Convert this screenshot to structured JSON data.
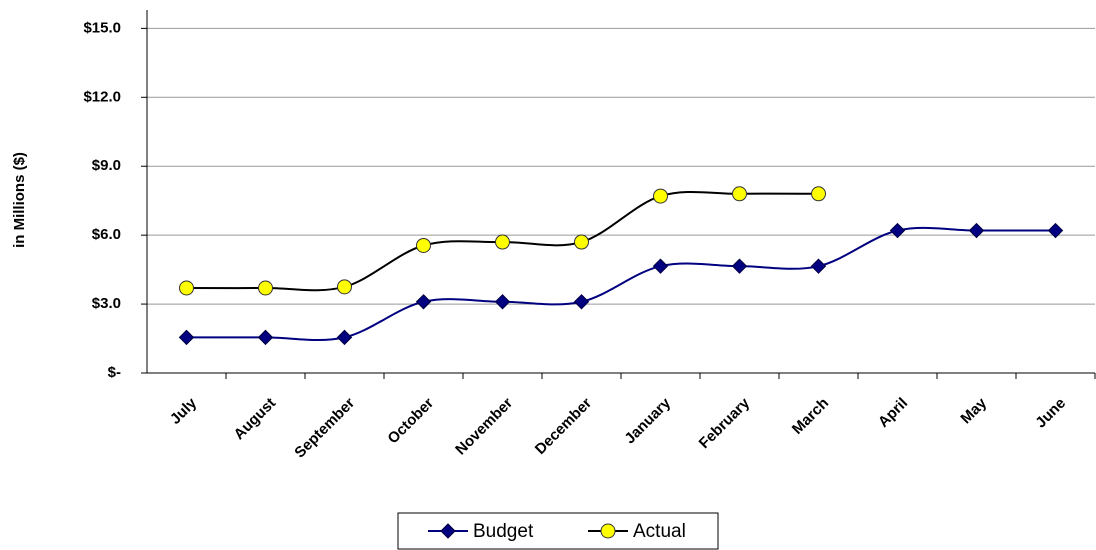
{
  "chart_data": {
    "type": "line",
    "y_label": "in Millions ($)",
    "categories": [
      "July",
      "August",
      "September",
      "October",
      "November",
      "December",
      "January",
      "February",
      "March",
      "April",
      "May",
      "June"
    ],
    "series": [
      {
        "name": "Budget",
        "color": "#000080",
        "marker": "diamond",
        "marker_color": "#000080",
        "values": [
          1.55,
          1.55,
          1.55,
          3.1,
          3.1,
          3.1,
          4.65,
          4.65,
          4.65,
          6.2,
          6.2,
          6.2
        ]
      },
      {
        "name": "Actual",
        "color": "#000000",
        "marker": "circle",
        "marker_color": "#ffff00",
        "values": [
          3.7,
          3.7,
          3.75,
          5.55,
          5.7,
          5.7,
          7.7,
          7.8,
          7.8,
          null,
          null,
          null
        ]
      }
    ],
    "ylim": [
      0,
      15.8
    ],
    "yticks": [
      {
        "value": 0,
        "label": "$-"
      },
      {
        "value": 3,
        "label": "$3.0"
      },
      {
        "value": 6,
        "label": "$6.0"
      },
      {
        "value": 9,
        "label": "$9.0"
      },
      {
        "value": 12,
        "label": "$12.0"
      },
      {
        "value": 15,
        "label": "$15.0"
      }
    ],
    "grid": true,
    "smooth": true,
    "legend": "bottom"
  }
}
